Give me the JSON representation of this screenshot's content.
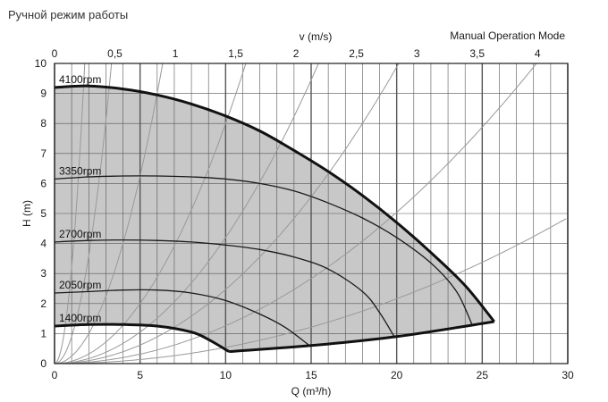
{
  "page": {
    "title": "Ручной режим работы",
    "mode_label": "Manual Operation Mode"
  },
  "chart_data": {
    "type": "line",
    "title": "",
    "xlabel": "Q (m³/h)",
    "ylabel": "H (m)",
    "x2label": "v (m/s)",
    "xlim": [
      0,
      30
    ],
    "ylim": [
      0,
      10
    ],
    "x2lim": [
      0,
      4.25
    ],
    "xticks": [
      0,
      5,
      10,
      15,
      20,
      25,
      30
    ],
    "yticks": [
      0,
      1,
      2,
      3,
      4,
      5,
      6,
      7,
      8,
      9,
      10
    ],
    "x2ticks": [
      0,
      0.5,
      1,
      1.5,
      2,
      2.5,
      3,
      3.5,
      4
    ],
    "x2tick_labels": [
      "0",
      "0,5",
      "1",
      "1,5",
      "2",
      "2,5",
      "3",
      "3,5",
      "4"
    ],
    "grid": true,
    "colors": {
      "operating_area": "#c8c8c8",
      "curve": "#1a1a1a",
      "envelope": "#111111",
      "system_curve": "#999999",
      "grid": "#555555"
    },
    "series": [
      {
        "name": "4100rpm",
        "points": [
          [
            0,
            9.2
          ],
          [
            2,
            9.25
          ],
          [
            4,
            9.15
          ],
          [
            6,
            8.95
          ],
          [
            8,
            8.65
          ],
          [
            10,
            8.25
          ],
          [
            12,
            7.75
          ],
          [
            14,
            7.1
          ],
          [
            16,
            6.4
          ],
          [
            18,
            5.6
          ],
          [
            20,
            4.7
          ],
          [
            22,
            3.7
          ],
          [
            24,
            2.6
          ],
          [
            25.7,
            1.4
          ]
        ]
      },
      {
        "name": "3350rpm",
        "points": [
          [
            0,
            6.15
          ],
          [
            2,
            6.22
          ],
          [
            4,
            6.25
          ],
          [
            6,
            6.25
          ],
          [
            8,
            6.22
          ],
          [
            10,
            6.15
          ],
          [
            12,
            6.0
          ],
          [
            14,
            5.75
          ],
          [
            16,
            5.35
          ],
          [
            18,
            4.85
          ],
          [
            20,
            4.2
          ],
          [
            22,
            3.35
          ],
          [
            23.5,
            2.4
          ],
          [
            24.4,
            1.3
          ]
        ]
      },
      {
        "name": "2700rpm",
        "points": [
          [
            0,
            4.05
          ],
          [
            2,
            4.1
          ],
          [
            4,
            4.12
          ],
          [
            6,
            4.1
          ],
          [
            8,
            4.05
          ],
          [
            10,
            3.95
          ],
          [
            12,
            3.8
          ],
          [
            14,
            3.55
          ],
          [
            16,
            3.15
          ],
          [
            18,
            2.4
          ],
          [
            19,
            1.7
          ],
          [
            19.9,
            0.85
          ]
        ]
      },
      {
        "name": "2050rpm",
        "points": [
          [
            0,
            2.35
          ],
          [
            2,
            2.4
          ],
          [
            4,
            2.45
          ],
          [
            6,
            2.45
          ],
          [
            8,
            2.35
          ],
          [
            10,
            2.1
          ],
          [
            12,
            1.65
          ],
          [
            13.5,
            1.2
          ],
          [
            14.9,
            0.6
          ]
        ]
      },
      {
        "name": "1400rpm",
        "points": [
          [
            0,
            1.25
          ],
          [
            2,
            1.3
          ],
          [
            4,
            1.3
          ],
          [
            6,
            1.25
          ],
          [
            8,
            1.05
          ],
          [
            9,
            0.8
          ],
          [
            10.2,
            0.4
          ]
        ]
      }
    ],
    "min_curve": [
      [
        10.2,
        0.4
      ],
      [
        15,
        0.6
      ],
      [
        20,
        0.9
      ],
      [
        25.7,
        1.4
      ]
    ],
    "system_curves": [
      {
        "k": 3.2
      },
      {
        "k": 0.9
      },
      {
        "k": 0.25
      },
      {
        "k": 0.08
      },
      {
        "k": 0.042
      },
      {
        "k": 0.0247
      },
      {
        "k": 0.0126
      },
      {
        "k": 0.0054
      }
    ]
  }
}
